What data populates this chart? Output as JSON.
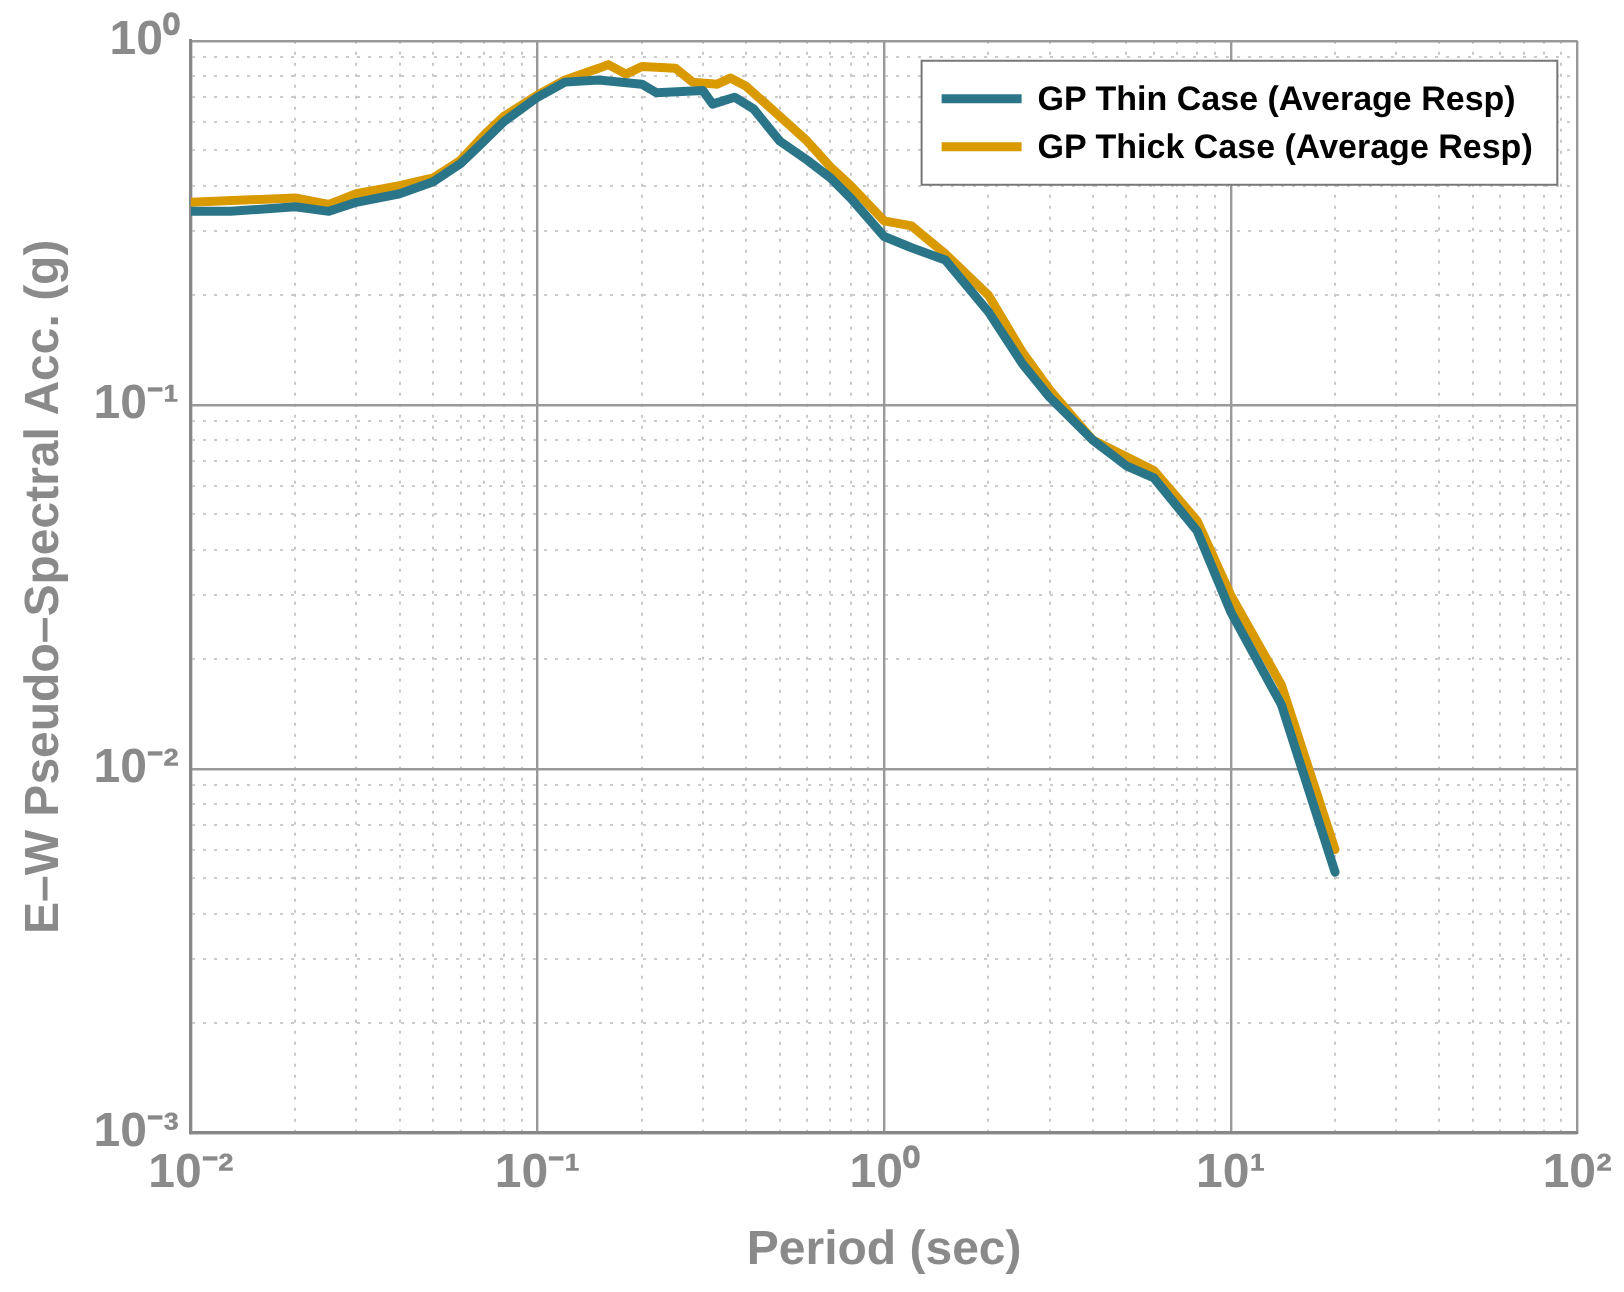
{
  "chart_data": {
    "type": "line",
    "xlabel": "Period (sec)",
    "ylabel": "E–W Pseudo–Spectral Acc. (g)",
    "log": "xy",
    "grid": true,
    "legend": "top right",
    "marker": "none",
    "line_style": "solid",
    "xlim": [
      0.01,
      100
    ],
    "ylim": [
      0.001,
      1
    ],
    "xticks": [
      {
        "value": 0.01,
        "label": "10⁻²"
      },
      {
        "value": 0.02,
        "label": null
      },
      {
        "value": 0.03,
        "label": null
      },
      {
        "value": 0.04,
        "label": null
      },
      {
        "value": 0.05,
        "label": null
      },
      {
        "value": 0.06,
        "label": null
      },
      {
        "value": 0.07,
        "label": null
      },
      {
        "value": 0.08,
        "label": null
      },
      {
        "value": 0.09,
        "label": null
      },
      {
        "value": 0.1,
        "label": "10⁻¹"
      },
      {
        "value": 0.2,
        "label": null
      },
      {
        "value": 0.3,
        "label": null
      },
      {
        "value": 0.4,
        "label": null
      },
      {
        "value": 0.5,
        "label": null
      },
      {
        "value": 0.6,
        "label": null
      },
      {
        "value": 0.7,
        "label": null
      },
      {
        "value": 0.8,
        "label": null
      },
      {
        "value": 0.9,
        "label": null
      },
      {
        "value": 1,
        "label": "10⁰"
      },
      {
        "value": 2,
        "label": null
      },
      {
        "value": 3,
        "label": null
      },
      {
        "value": 4,
        "label": null
      },
      {
        "value": 5,
        "label": null
      },
      {
        "value": 6,
        "label": null
      },
      {
        "value": 7,
        "label": null
      },
      {
        "value": 8,
        "label": null
      },
      {
        "value": 9,
        "label": null
      },
      {
        "value": 10,
        "label": "10¹"
      },
      {
        "value": 20,
        "label": null
      },
      {
        "value": 30,
        "label": null
      },
      {
        "value": 40,
        "label": null
      },
      {
        "value": 50,
        "label": null
      },
      {
        "value": 60,
        "label": null
      },
      {
        "value": 70,
        "label": null
      },
      {
        "value": 80,
        "label": null
      },
      {
        "value": 90,
        "label": null
      },
      {
        "value": 100,
        "label": "10²"
      }
    ],
    "yticks": [
      {
        "value": 0.001,
        "label": "10⁻³"
      },
      {
        "value": 0.002,
        "label": null
      },
      {
        "value": 0.003,
        "label": null
      },
      {
        "value": 0.004,
        "label": null
      },
      {
        "value": 0.005,
        "label": null
      },
      {
        "value": 0.006,
        "label": null
      },
      {
        "value": 0.007,
        "label": null
      },
      {
        "value": 0.008,
        "label": null
      },
      {
        "value": 0.009,
        "label": null
      },
      {
        "value": 0.01,
        "label": "10⁻²"
      },
      {
        "value": 0.02,
        "label": null
      },
      {
        "value": 0.03,
        "label": null
      },
      {
        "value": 0.04,
        "label": null
      },
      {
        "value": 0.05,
        "label": null
      },
      {
        "value": 0.06,
        "label": null
      },
      {
        "value": 0.07,
        "label": null
      },
      {
        "value": 0.08,
        "label": null
      },
      {
        "value": 0.09,
        "label": null
      },
      {
        "value": 0.1,
        "label": "10⁻¹"
      },
      {
        "value": 0.2,
        "label": null
      },
      {
        "value": 0.3,
        "label": null
      },
      {
        "value": 0.4,
        "label": null
      },
      {
        "value": 0.5,
        "label": null
      },
      {
        "value": 0.6,
        "label": null
      },
      {
        "value": 0.7,
        "label": null
      },
      {
        "value": 0.8,
        "label": null
      },
      {
        "value": 0.9,
        "label": null
      },
      {
        "value": 1,
        "label": "10⁰"
      }
    ],
    "series": [
      {
        "name": "GP Thin Case (Average Resp)",
        "color": "#2a7688",
        "x": [
          0.01,
          0.013,
          0.02,
          0.025,
          0.03,
          0.04,
          0.05,
          0.06,
          0.07,
          0.08,
          0.1,
          0.12,
          0.15,
          0.2,
          0.22,
          0.3,
          0.32,
          0.37,
          0.42,
          0.5,
          0.6,
          0.7,
          0.8,
          1.0,
          1.2,
          1.5,
          2.0,
          2.5,
          3.0,
          4.0,
          5.0,
          6.0,
          8.0,
          10,
          14,
          20
        ],
        "values": [
          0.34,
          0.34,
          0.35,
          0.34,
          0.36,
          0.38,
          0.41,
          0.46,
          0.53,
          0.6,
          0.7,
          0.77,
          0.78,
          0.76,
          0.72,
          0.73,
          0.67,
          0.7,
          0.65,
          0.53,
          0.47,
          0.42,
          0.37,
          0.29,
          0.27,
          0.25,
          0.18,
          0.13,
          0.105,
          0.08,
          0.068,
          0.063,
          0.045,
          0.027,
          0.015,
          0.0052
        ]
      },
      {
        "name": "GP Thick Case (Average Resp)",
        "color": "#d99a00",
        "x": [
          0.01,
          0.02,
          0.025,
          0.03,
          0.04,
          0.05,
          0.06,
          0.07,
          0.08,
          0.1,
          0.12,
          0.15,
          0.16,
          0.18,
          0.2,
          0.25,
          0.28,
          0.33,
          0.36,
          0.4,
          0.5,
          0.6,
          0.7,
          0.8,
          1.0,
          1.2,
          1.5,
          2.0,
          2.5,
          3.0,
          4.0,
          5.0,
          6.0,
          8.0,
          10,
          14,
          20
        ],
        "values": [
          0.36,
          0.37,
          0.355,
          0.38,
          0.4,
          0.42,
          0.47,
          0.55,
          0.62,
          0.71,
          0.78,
          0.84,
          0.86,
          0.81,
          0.85,
          0.84,
          0.77,
          0.76,
          0.79,
          0.75,
          0.62,
          0.53,
          0.45,
          0.4,
          0.32,
          0.31,
          0.26,
          0.2,
          0.14,
          0.11,
          0.08,
          0.072,
          0.066,
          0.048,
          0.03,
          0.017,
          0.006
        ]
      }
    ]
  }
}
